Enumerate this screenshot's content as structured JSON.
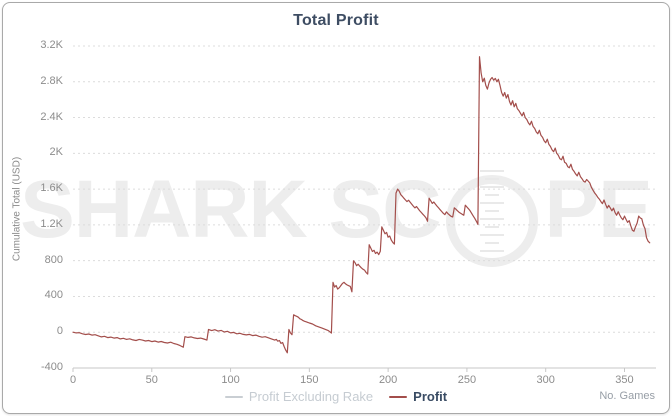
{
  "card": {
    "title": "Total Profit"
  },
  "axes": {
    "y_title": "Cumulative Total (USD)",
    "x_title": "No. Games",
    "y_ticks": [
      {
        "label": "3.2K",
        "value": 3200
      },
      {
        "label": "2.8K",
        "value": 2800
      },
      {
        "label": "2.4K",
        "value": 2400
      },
      {
        "label": "2K",
        "value": 2000
      },
      {
        "label": "1.6K",
        "value": 1600
      },
      {
        "label": "1.2K",
        "value": 1200
      },
      {
        "label": "800",
        "value": 800
      },
      {
        "label": "400",
        "value": 400
      },
      {
        "label": "0",
        "value": 0
      },
      {
        "label": "-400",
        "value": -400
      }
    ],
    "x_ticks": [
      {
        "label": "0",
        "value": 0
      },
      {
        "label": "50",
        "value": 50
      },
      {
        "label": "100",
        "value": 100
      },
      {
        "label": "150",
        "value": 150
      },
      {
        "label": "200",
        "value": 200
      },
      {
        "label": "250",
        "value": 250
      },
      {
        "label": "300",
        "value": 300
      },
      {
        "label": "350",
        "value": 350
      }
    ]
  },
  "legend": [
    {
      "label": "Profit Excluding Rake",
      "dash_color": "#c9ced3",
      "text_color": "#c6ccd2",
      "enabled": false
    },
    {
      "label": "Profit",
      "dash_color": "#a34e4b",
      "text_color": "#394b63",
      "enabled": true
    }
  ],
  "watermark": {
    "left_text": "SHARK SC",
    "right_text": "PE"
  },
  "colors": {
    "title": "#3e4d63",
    "line": "#a34e4b",
    "grid": "#dcdcdc",
    "axis": "#c7c7c7",
    "tick": "#8c8c8c",
    "watermark": "#ededed",
    "card_border": "#a9a9a9"
  },
  "chart_data": {
    "type": "line",
    "title": "Total Profit",
    "xlabel": "No. Games",
    "ylabel": "Cumulative Total (USD)",
    "xlim": [
      0,
      370
    ],
    "ylim": [
      -400,
      3200
    ],
    "grid": true,
    "grid_style": "dashed",
    "legend_position": "bottom",
    "series": [
      {
        "name": "Profit",
        "color": "#a34e4b",
        "hidden": false,
        "points": [
          [
            0,
            0
          ],
          [
            2,
            -8
          ],
          [
            4,
            -5
          ],
          [
            6,
            -18
          ],
          [
            8,
            -25
          ],
          [
            10,
            -20
          ],
          [
            12,
            -32
          ],
          [
            14,
            -28
          ],
          [
            16,
            -40
          ],
          [
            18,
            -52
          ],
          [
            20,
            -46
          ],
          [
            22,
            -60
          ],
          [
            24,
            -55
          ],
          [
            26,
            -66
          ],
          [
            28,
            -60
          ],
          [
            30,
            -75
          ],
          [
            32,
            -68
          ],
          [
            34,
            -80
          ],
          [
            36,
            -74
          ],
          [
            38,
            -86
          ],
          [
            40,
            -92
          ],
          [
            42,
            -80
          ],
          [
            44,
            -88
          ],
          [
            46,
            -98
          ],
          [
            48,
            -92
          ],
          [
            50,
            -105
          ],
          [
            52,
            -98
          ],
          [
            54,
            -110
          ],
          [
            56,
            -104
          ],
          [
            58,
            -115
          ],
          [
            60,
            -120
          ],
          [
            62,
            -112
          ],
          [
            64,
            -126
          ],
          [
            66,
            -135
          ],
          [
            68,
            -150
          ],
          [
            70,
            -168
          ],
          [
            71,
            -50
          ],
          [
            73,
            -58
          ],
          [
            75,
            -52
          ],
          [
            77,
            -64
          ],
          [
            79,
            -70
          ],
          [
            81,
            -66
          ],
          [
            83,
            -76
          ],
          [
            85,
            -88
          ],
          [
            86,
            30
          ],
          [
            88,
            18
          ],
          [
            90,
            28
          ],
          [
            92,
            12
          ],
          [
            94,
            20
          ],
          [
            96,
            2
          ],
          [
            98,
            10
          ],
          [
            100,
            -8
          ],
          [
            102,
            -2
          ],
          [
            104,
            -18
          ],
          [
            106,
            -12
          ],
          [
            108,
            -24
          ],
          [
            110,
            -30
          ],
          [
            112,
            -24
          ],
          [
            114,
            -38
          ],
          [
            116,
            -32
          ],
          [
            118,
            -46
          ],
          [
            120,
            -56
          ],
          [
            122,
            -50
          ],
          [
            124,
            -62
          ],
          [
            126,
            -75
          ],
          [
            128,
            -88
          ],
          [
            129,
            -80
          ],
          [
            130,
            -100
          ],
          [
            131,
            -92
          ],
          [
            132,
            -125
          ],
          [
            133,
            -115
          ],
          [
            134,
            -160
          ],
          [
            135,
            -200
          ],
          [
            136,
            -230
          ],
          [
            137,
            30
          ],
          [
            138,
            -8
          ],
          [
            139,
            -28
          ],
          [
            140,
            195
          ],
          [
            141,
            185
          ],
          [
            142,
            178
          ],
          [
            143,
            168
          ],
          [
            144,
            150
          ],
          [
            145,
            142
          ],
          [
            146,
            130
          ],
          [
            147,
            122
          ],
          [
            148,
            116
          ],
          [
            149,
            110
          ],
          [
            150,
            103
          ],
          [
            152,
            92
          ],
          [
            154,
            72
          ],
          [
            156,
            60
          ],
          [
            158,
            46
          ],
          [
            160,
            33
          ],
          [
            162,
            18
          ],
          [
            163,
            6
          ],
          [
            164,
            -10
          ],
          [
            165,
            558
          ],
          [
            166,
            505
          ],
          [
            167,
            522
          ],
          [
            168,
            482
          ],
          [
            169,
            498
          ],
          [
            170,
            522
          ],
          [
            171,
            545
          ],
          [
            172,
            558
          ],
          [
            173,
            540
          ],
          [
            174,
            528
          ],
          [
            175,
            520
          ],
          [
            176,
            512
          ],
          [
            177,
            452
          ],
          [
            178,
            798
          ],
          [
            179,
            778
          ],
          [
            180,
            744
          ],
          [
            181,
            760
          ],
          [
            182,
            738
          ],
          [
            183,
            720
          ],
          [
            184,
            705
          ],
          [
            185,
            695
          ],
          [
            186,
            668
          ],
          [
            187,
            650
          ],
          [
            188,
            978
          ],
          [
            189,
            940
          ],
          [
            190,
            902
          ],
          [
            191,
            916
          ],
          [
            192,
            880
          ],
          [
            193,
            896
          ],
          [
            194,
            868
          ],
          [
            195,
            905
          ],
          [
            196,
            1178
          ],
          [
            197,
            1140
          ],
          [
            198,
            1100
          ],
          [
            199,
            1116
          ],
          [
            200,
            1062
          ],
          [
            201,
            1076
          ],
          [
            202,
            1030
          ],
          [
            203,
            1002
          ],
          [
            204,
            985
          ],
          [
            205,
            1555
          ],
          [
            206,
            1600
          ],
          [
            207,
            1578
          ],
          [
            208,
            1540
          ],
          [
            209,
            1520
          ],
          [
            210,
            1498
          ],
          [
            211,
            1478
          ],
          [
            212,
            1460
          ],
          [
            213,
            1476
          ],
          [
            214,
            1452
          ],
          [
            215,
            1430
          ],
          [
            216,
            1410
          ],
          [
            217,
            1390
          ],
          [
            218,
            1406
          ],
          [
            219,
            1382
          ],
          [
            220,
            1360
          ],
          [
            221,
            1340
          ],
          [
            222,
            1320
          ],
          [
            223,
            1300
          ],
          [
            224,
            1278
          ],
          [
            225,
            1240
          ],
          [
            226,
            1498
          ],
          [
            227,
            1470
          ],
          [
            228,
            1440
          ],
          [
            229,
            1456
          ],
          [
            230,
            1432
          ],
          [
            231,
            1410
          ],
          [
            232,
            1390
          ],
          [
            233,
            1370
          ],
          [
            234,
            1350
          ],
          [
            235,
            1330
          ],
          [
            236,
            1315
          ],
          [
            237,
            1345
          ],
          [
            238,
            1325
          ],
          [
            239,
            1310
          ],
          [
            240,
            1295
          ],
          [
            241,
            1288
          ],
          [
            242,
            1390
          ],
          [
            243,
            1375
          ],
          [
            244,
            1358
          ],
          [
            245,
            1342
          ],
          [
            246,
            1330
          ],
          [
            247,
            1318
          ],
          [
            248,
            1308
          ],
          [
            249,
            1420
          ],
          [
            250,
            1400
          ],
          [
            251,
            1380
          ],
          [
            252,
            1358
          ],
          [
            253,
            1330
          ],
          [
            254,
            1300
          ],
          [
            255,
            1272
          ],
          [
            256,
            1240
          ],
          [
            257,
            1205
          ],
          [
            258,
            3080
          ],
          [
            259,
            2900
          ],
          [
            260,
            2800
          ],
          [
            261,
            2840
          ],
          [
            262,
            2760
          ],
          [
            263,
            2718
          ],
          [
            264,
            2788
          ],
          [
            265,
            2828
          ],
          [
            266,
            2848
          ],
          [
            267,
            2818
          ],
          [
            268,
            2838
          ],
          [
            269,
            2800
          ],
          [
            270,
            2828
          ],
          [
            271,
            2760
          ],
          [
            272,
            2680
          ],
          [
            273,
            2640
          ],
          [
            274,
            2680
          ],
          [
            275,
            2618
          ],
          [
            276,
            2658
          ],
          [
            277,
            2580
          ],
          [
            278,
            2540
          ],
          [
            279,
            2588
          ],
          [
            280,
            2520
          ],
          [
            281,
            2558
          ],
          [
            282,
            2500
          ],
          [
            283,
            2478
          ],
          [
            284,
            2448
          ],
          [
            285,
            2418
          ],
          [
            286,
            2458
          ],
          [
            287,
            2400
          ],
          [
            288,
            2378
          ],
          [
            289,
            2340
          ],
          [
            290,
            2318
          ],
          [
            291,
            2358
          ],
          [
            292,
            2300
          ],
          [
            293,
            2278
          ],
          [
            294,
            2240
          ],
          [
            295,
            2218
          ],
          [
            296,
            2258
          ],
          [
            297,
            2200
          ],
          [
            298,
            2178
          ],
          [
            299,
            2140
          ],
          [
            300,
            2118
          ],
          [
            301,
            2158
          ],
          [
            302,
            2100
          ],
          [
            303,
            2078
          ],
          [
            304,
            2040
          ],
          [
            305,
            2018
          ],
          [
            306,
            2058
          ],
          [
            307,
            2000
          ],
          [
            308,
            1978
          ],
          [
            309,
            1940
          ],
          [
            310,
            1928
          ],
          [
            311,
            1968
          ],
          [
            312,
            1900
          ],
          [
            313,
            1888
          ],
          [
            314,
            1850
          ],
          [
            315,
            1838
          ],
          [
            316,
            1878
          ],
          [
            317,
            1820
          ],
          [
            318,
            1798
          ],
          [
            319,
            1770
          ],
          [
            320,
            1748
          ],
          [
            321,
            1788
          ],
          [
            322,
            1740
          ],
          [
            323,
            1718
          ],
          [
            324,
            1690
          ],
          [
            325,
            1678
          ],
          [
            326,
            1708
          ],
          [
            327,
            1690
          ],
          [
            328,
            1668
          ],
          [
            329,
            1620
          ],
          [
            330,
            1588
          ],
          [
            331,
            1560
          ],
          [
            332,
            1538
          ],
          [
            333,
            1510
          ],
          [
            334,
            1488
          ],
          [
            335,
            1460
          ],
          [
            336,
            1438
          ],
          [
            337,
            1478
          ],
          [
            338,
            1430
          ],
          [
            339,
            1388
          ],
          [
            340,
            1418
          ],
          [
            341,
            1390
          ],
          [
            342,
            1358
          ],
          [
            343,
            1388
          ],
          [
            344,
            1340
          ],
          [
            345,
            1308
          ],
          [
            346,
            1348
          ],
          [
            347,
            1310
          ],
          [
            348,
            1278
          ],
          [
            349,
            1258
          ],
          [
            350,
            1298
          ],
          [
            351,
            1260
          ],
          [
            352,
            1228
          ],
          [
            353,
            1248
          ],
          [
            354,
            1190
          ],
          [
            355,
            1140
          ],
          [
            356,
            1128
          ],
          [
            357,
            1180
          ],
          [
            358,
            1220
          ],
          [
            359,
            1298
          ],
          [
            360,
            1278
          ],
          [
            361,
            1268
          ],
          [
            362,
            1198
          ],
          [
            363,
            1158
          ],
          [
            364,
            1058
          ],
          [
            365,
            1018
          ],
          [
            366,
            1000
          ]
        ]
      },
      {
        "name": "Profit Excluding Rake",
        "color": "#c9ced3",
        "hidden": true,
        "points": []
      }
    ]
  }
}
